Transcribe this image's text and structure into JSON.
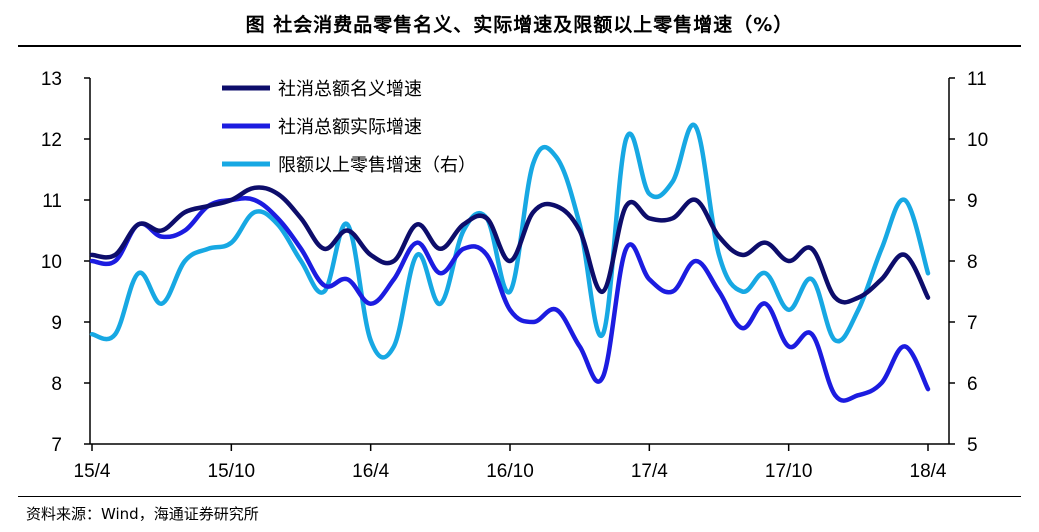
{
  "title": "图    社会消费品零售名义、实际增速及限额以上零售增速（%）",
  "source": "资料来源：Wind，海通证券研究所",
  "chart_data": {
    "type": "line",
    "x": [
      "15/04",
      "15/05",
      "15/06",
      "15/07",
      "15/08",
      "15/09",
      "15/10",
      "15/11",
      "15/12",
      "16/01",
      "16/02",
      "16/03",
      "16/04",
      "16/05",
      "16/06",
      "16/07",
      "16/08",
      "16/09",
      "16/10",
      "16/11",
      "16/12",
      "17/01",
      "17/02",
      "17/03",
      "17/04",
      "17/05",
      "17/06",
      "17/07",
      "17/08",
      "17/09",
      "17/10",
      "17/11",
      "17/12",
      "18/01",
      "18/02",
      "18/03",
      "18/04"
    ],
    "x_tick_labels": [
      "15/4",
      "15/10",
      "16/4",
      "16/10",
      "17/4",
      "17/10",
      "18/4"
    ],
    "y_left_lim": [
      7,
      13
    ],
    "y_left_ticks": [
      "7",
      "8",
      "9",
      "10",
      "11",
      "12",
      "13"
    ],
    "y_right_lim": [
      5,
      11
    ],
    "y_right_ticks": [
      "5",
      "6",
      "7",
      "8",
      "9",
      "10",
      "11"
    ],
    "series": [
      {
        "name": "社消总额名义增速",
        "axis": "left",
        "color": "#0d0d6b",
        "values": [
          10.1,
          10.1,
          10.6,
          10.5,
          10.8,
          10.9,
          11.0,
          11.2,
          11.1,
          10.7,
          10.2,
          10.5,
          10.1,
          10.0,
          10.6,
          10.2,
          10.6,
          10.7,
          10.0,
          10.8,
          10.9,
          10.5,
          9.5,
          10.9,
          10.7,
          10.7,
          11.0,
          10.4,
          10.1,
          10.3,
          10.0,
          10.2,
          9.4,
          9.4,
          9.7,
          10.1,
          9.4
        ]
      },
      {
        "name": "社消总额实际增速",
        "axis": "left",
        "color": "#1c1ce0",
        "values": [
          10.0,
          10.0,
          10.6,
          10.4,
          10.5,
          10.9,
          11.0,
          11.0,
          10.7,
          10.2,
          9.6,
          9.7,
          9.3,
          9.7,
          10.3,
          9.8,
          10.2,
          10.1,
          9.2,
          9.0,
          9.2,
          8.6,
          8.1,
          10.2,
          9.7,
          9.5,
          10.0,
          9.5,
          8.9,
          9.3,
          8.6,
          8.8,
          7.8,
          7.8,
          8.0,
          8.6,
          7.9
        ]
      },
      {
        "name": "限额以上零售增速（右）",
        "axis": "right",
        "color": "#17a8e3",
        "values": [
          6.8,
          6.8,
          7.8,
          7.3,
          8.0,
          8.2,
          8.3,
          8.8,
          8.6,
          8.0,
          7.5,
          8.6,
          6.7,
          6.6,
          8.1,
          7.3,
          8.5,
          8.7,
          7.5,
          9.6,
          9.7,
          8.6,
          6.8,
          10.0,
          9.1,
          9.3,
          10.2,
          8.1,
          7.5,
          7.8,
          7.2,
          7.7,
          6.7,
          7.2,
          8.2,
          9.0,
          7.8
        ]
      }
    ]
  }
}
